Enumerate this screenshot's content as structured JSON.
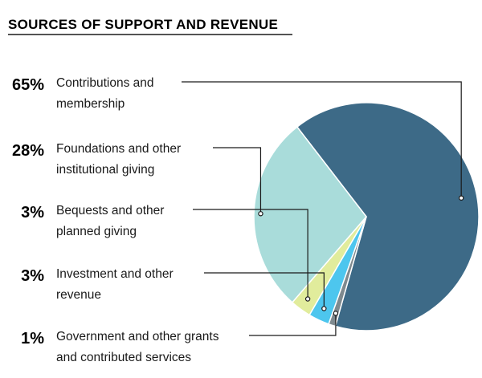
{
  "chart_data": {
    "type": "pie",
    "title": "SOURCES OF SUPPORT AND REVENUE",
    "slices": [
      {
        "percent_label": "65%",
        "value": 65,
        "label_lines": [
          "Contributions and",
          "membership"
        ],
        "color": "#3d6a87"
      },
      {
        "percent_label": "1%",
        "value": 1,
        "label_lines": [
          "Government and other grants",
          "and contributed services"
        ],
        "color": "#7f8a8f"
      },
      {
        "percent_label": "3%",
        "value": 3,
        "label_lines": [
          "Investment and other",
          "revenue"
        ],
        "color": "#4dc6ee"
      },
      {
        "percent_label": "3%",
        "value": 3,
        "label_lines": [
          "Bequests and other",
          "planned giving"
        ],
        "color": "#e1ec9c"
      },
      {
        "percent_label": "28%",
        "value": 28,
        "label_lines": [
          "Foundations and other",
          "institutional giving"
        ],
        "color": "#a9dcda"
      }
    ],
    "legend_order": [
      0,
      4,
      3,
      2,
      1
    ]
  }
}
